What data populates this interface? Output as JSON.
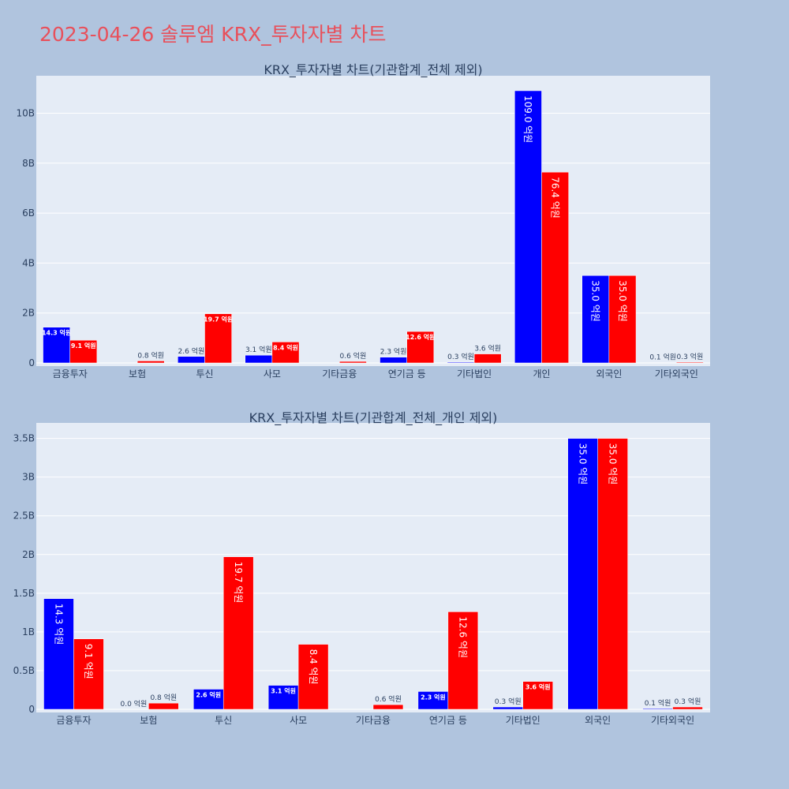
{
  "page_title": "2023-04-26 솔루엠 KRX_투자자별 차트",
  "colors": {
    "background": "#b0c4de",
    "plot_bg": "#e5ecf6",
    "series1": "#0000ff",
    "series2": "#ff0000",
    "title": "#e8505b"
  },
  "chart_data": [
    {
      "type": "bar",
      "title": "KRX_투자자별 차트(기관합계_전체 제외)",
      "categories": [
        "금융투자",
        "보험",
        "투신",
        "사모",
        "기타금융",
        "연기금 등",
        "기타법인",
        "개인",
        "외국인",
        "기타외국인"
      ],
      "y_tick_labels": [
        "0",
        "2B",
        "4B",
        "6B",
        "8B",
        "10B"
      ],
      "y_ticks": [
        0,
        2000000000,
        4000000000,
        6000000000,
        8000000000,
        10000000000
      ],
      "ylim": [
        0,
        11500000000
      ],
      "grid": true,
      "series": [
        {
          "color": "#0000ff",
          "values": [
            1430000000,
            0,
            260000000,
            310000000,
            0,
            230000000,
            30000000,
            10900000000,
            3500000000,
            10000000
          ],
          "labels": [
            "14.3 억원",
            "",
            "2.6 억원",
            "3.1 억원",
            "",
            "2.3 억원",
            "0.3 억원",
            "109.0 억원",
            "35.0 억원",
            "0.1 억원"
          ]
        },
        {
          "color": "#ff0000",
          "values": [
            910000000,
            80000000,
            1970000000,
            840000000,
            60000000,
            1260000000,
            360000000,
            7640000000,
            3500000000,
            30000000
          ],
          "labels": [
            "9.1 억원",
            "0.8 억원",
            "19.7 억원",
            "8.4 억원",
            "0.6 억원",
            "12.6 억원",
            "3.6 억원",
            "76.4 억원",
            "35.0 억원",
            "0.3 억원"
          ]
        }
      ]
    },
    {
      "type": "bar",
      "title": "KRX_투자자별 차트(기관합계_전체_개인 제외)",
      "categories": [
        "금융투자",
        "보험",
        "투신",
        "사모",
        "기타금융",
        "연기금 등",
        "기타법인",
        "외국인",
        "기타외국인"
      ],
      "y_tick_labels": [
        "0",
        "0.5B",
        "1B",
        "1.5B",
        "2B",
        "2.5B",
        "3B",
        "3.5B"
      ],
      "y_ticks": [
        0,
        500000000,
        1000000000,
        1500000000,
        2000000000,
        2500000000,
        3000000000,
        3500000000
      ],
      "ylim": [
        0,
        3700000000
      ],
      "grid": true,
      "series": [
        {
          "color": "#0000ff",
          "values": [
            1430000000,
            0,
            260000000,
            310000000,
            0,
            230000000,
            30000000,
            3500000000,
            10000000
          ],
          "labels": [
            "14.3 억원",
            "0.0 억원",
            "2.6 억원",
            "3.1 억원",
            "",
            "2.3 억원",
            "0.3 억원",
            "35.0 억원",
            "0.1 억원"
          ]
        },
        {
          "color": "#ff0000",
          "values": [
            910000000,
            80000000,
            1970000000,
            840000000,
            60000000,
            1260000000,
            360000000,
            3500000000,
            30000000
          ],
          "labels": [
            "9.1 억원",
            "0.8 억원",
            "19.7 억원",
            "8.4 억원",
            "0.6 억원",
            "12.6 억원",
            "3.6 억원",
            "35.0 억원",
            "0.3 억원"
          ]
        }
      ]
    }
  ]
}
